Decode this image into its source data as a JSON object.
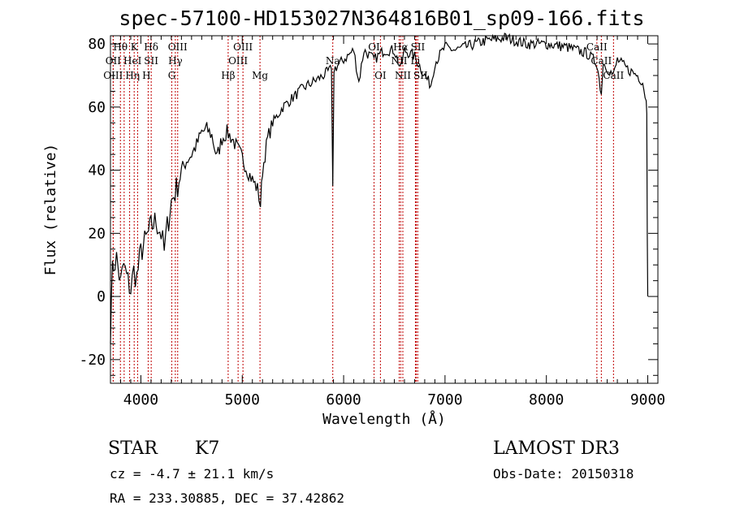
{
  "chart_data": {
    "type": "line",
    "title": "spec-57100-HD153027N364816B01_sp09-166.fits",
    "xlabel": "Wavelength (Å)",
    "ylabel": "Flux (relative)",
    "xlim": [
      3700,
      9100
    ],
    "ylim": [
      -27.5,
      82.6
    ],
    "xticks": [
      4000,
      5000,
      6000,
      7000,
      8000,
      9000
    ],
    "yticks": [
      -20,
      0,
      20,
      40,
      60,
      80
    ],
    "grid": false,
    "series": [
      {
        "name": "spectrum",
        "points": [
          [
            3700,
            -15
          ],
          [
            3710,
            5
          ],
          [
            3730,
            10
          ],
          [
            3760,
            12
          ],
          [
            3800,
            4
          ],
          [
            3830,
            10
          ],
          [
            3860,
            6
          ],
          [
            3900,
            2
          ],
          [
            3930,
            8
          ],
          [
            3960,
            6
          ],
          [
            4000,
            14
          ],
          [
            4050,
            18
          ],
          [
            4100,
            22
          ],
          [
            4150,
            24
          ],
          [
            4200,
            20
          ],
          [
            4230,
            14
          ],
          [
            4260,
            22
          ],
          [
            4300,
            30
          ],
          [
            4350,
            34
          ],
          [
            4400,
            40
          ],
          [
            4450,
            43
          ],
          [
            4500,
            45
          ],
          [
            4550,
            48
          ],
          [
            4600,
            52
          ],
          [
            4650,
            53
          ],
          [
            4700,
            51
          ],
          [
            4750,
            44
          ],
          [
            4800,
            50
          ],
          [
            4850,
            52
          ],
          [
            4900,
            50
          ],
          [
            4950,
            47
          ],
          [
            5000,
            44
          ],
          [
            5050,
            40
          ],
          [
            5100,
            37
          ],
          [
            5150,
            34
          ],
          [
            5180,
            29
          ],
          [
            5200,
            40
          ],
          [
            5250,
            50
          ],
          [
            5300,
            55
          ],
          [
            5400,
            60
          ],
          [
            5500,
            63
          ],
          [
            5600,
            66
          ],
          [
            5700,
            68
          ],
          [
            5800,
            70
          ],
          [
            5880,
            72
          ],
          [
            5893,
            35
          ],
          [
            5905,
            72
          ],
          [
            6000,
            75
          ],
          [
            6100,
            78
          ],
          [
            6150,
            68
          ],
          [
            6200,
            78
          ],
          [
            6300,
            75
          ],
          [
            6400,
            78
          ],
          [
            6500,
            78
          ],
          [
            6563,
            72
          ],
          [
            6600,
            78
          ],
          [
            6700,
            76
          ],
          [
            6800,
            70
          ],
          [
            6860,
            67
          ],
          [
            6900,
            74
          ],
          [
            7000,
            79
          ],
          [
            7100,
            78
          ],
          [
            7200,
            79
          ],
          [
            7400,
            81
          ],
          [
            7600,
            82
          ],
          [
            7800,
            80
          ],
          [
            8000,
            80
          ],
          [
            8200,
            79
          ],
          [
            8400,
            77
          ],
          [
            8498,
            74
          ],
          [
            8542,
            64
          ],
          [
            8560,
            74
          ],
          [
            8662,
            70
          ],
          [
            8700,
            75
          ],
          [
            8800,
            72
          ],
          [
            8900,
            70
          ],
          [
            8950,
            68
          ],
          [
            8985,
            62
          ],
          [
            8990,
            58
          ],
          [
            8995,
            20
          ],
          [
            9000,
            0
          ]
        ]
      }
    ],
    "line_labels": [
      {
        "label": "Hθ",
        "wave": 3798,
        "row": 0
      },
      {
        "label": "K",
        "wave": 3934,
        "row": 0
      },
      {
        "label": "Hδ",
        "wave": 4102,
        "row": 0
      },
      {
        "label": "OIII",
        "wave": 4363,
        "row": 0
      },
      {
        "label": "OIII",
        "wave": 5007,
        "row": 0
      },
      {
        "label": "OI",
        "wave": 6300,
        "row": 0
      },
      {
        "label": "Hα",
        "wave": 6563,
        "row": 0
      },
      {
        "label": "SII",
        "wave": 6717,
        "row": 0
      },
      {
        "label": "CaII",
        "wave": 8498,
        "row": 0
      },
      {
        "label": "OII",
        "wave": 3727,
        "row": 1
      },
      {
        "label": "HeI",
        "wave": 3889,
        "row": 1
      },
      {
        "label": "SII",
        "wave": 4072,
        "row": 1
      },
      {
        "label": "Hγ",
        "wave": 4340,
        "row": 1
      },
      {
        "label": "OIII",
        "wave": 4959,
        "row": 1
      },
      {
        "label": "Na",
        "wave": 5893,
        "row": 1
      },
      {
        "label": "NII",
        "wave": 6548,
        "row": 1
      },
      {
        "label": "Li",
        "wave": 6708,
        "row": 1
      },
      {
        "label": "CaII",
        "wave": 8542,
        "row": 1
      },
      {
        "label": "OIII",
        "wave": 3727,
        "row": 2
      },
      {
        "label": "Hη",
        "wave": 3835,
        "row": 2
      },
      {
        "label": "H",
        "wave": 3968,
        "row": 2
      },
      {
        "label": "G",
        "wave": 4305,
        "row": 2
      },
      {
        "label": "Hβ",
        "wave": 4861,
        "row": 2
      },
      {
        "label": "Mg",
        "wave": 5175,
        "row": 2
      },
      {
        "label": "OI",
        "wave": 6363,
        "row": 2
      },
      {
        "label": "NII",
        "wave": 6584,
        "row": 2
      },
      {
        "label": "SII",
        "wave": 6731,
        "row": 2
      },
      {
        "label": "CaII",
        "wave": 8662,
        "row": 2
      }
    ]
  },
  "info": {
    "class": "STAR",
    "subclass": "K7",
    "survey": "LAMOST DR3",
    "cz": "cz = -4.7 ± 21.1 km/s",
    "obs_date": "Obs-Date: 20150318",
    "coords": "RA = 233.30885, DEC =  37.42862"
  }
}
